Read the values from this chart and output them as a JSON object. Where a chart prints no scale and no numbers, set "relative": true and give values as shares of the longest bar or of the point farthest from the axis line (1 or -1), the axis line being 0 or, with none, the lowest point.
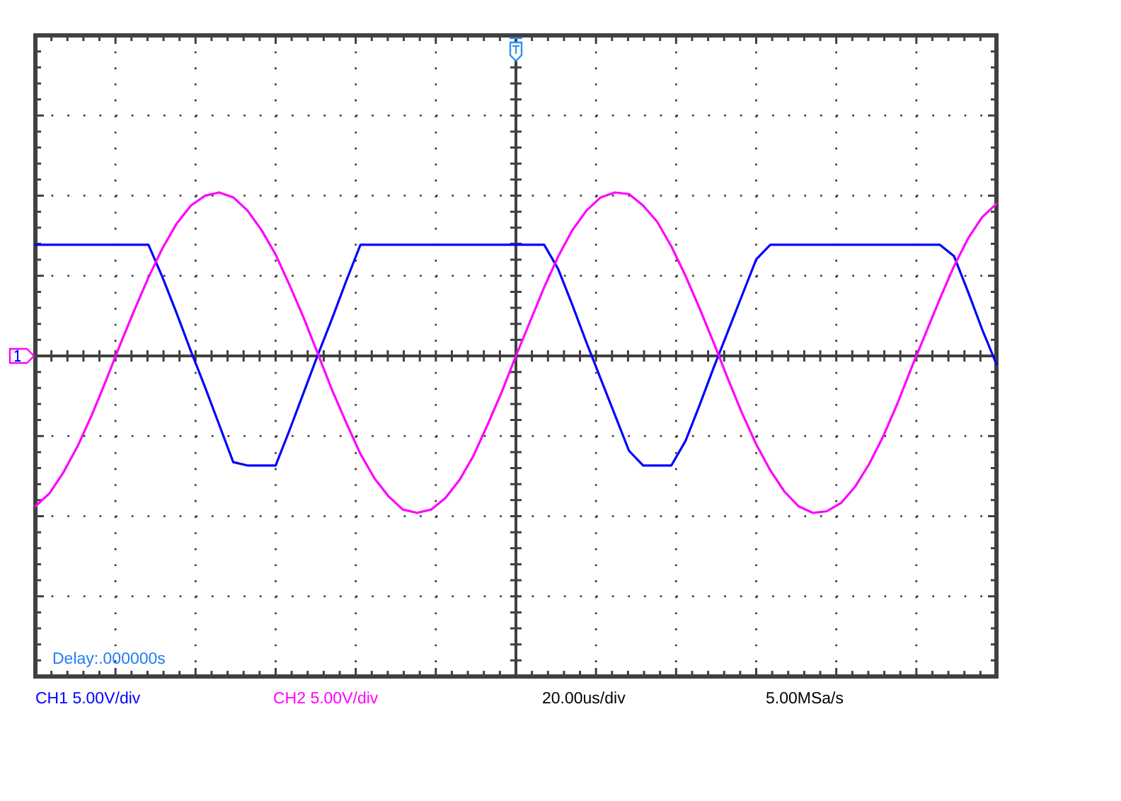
{
  "chart_data": {
    "type": "line",
    "relative": true,
    "categories": [
      null,
      null,
      null,
      null,
      null,
      null,
      null,
      null,
      null,
      null,
      null,
      null,
      null,
      null,
      null,
      null,
      null,
      null,
      null,
      null,
      null,
      null,
      null,
      null,
      null,
      null,
      null,
      null,
      null,
      null,
      null,
      null,
      null,
      null,
      null,
      null,
      null,
      null,
      null,
      null,
      null,
      null,
      null,
      null,
      null,
      null,
      null,
      null,
      null,
      null,
      null,
      null,
      null,
      null,
      null,
      null,
      null,
      null,
      null,
      null,
      null,
      null,
      null,
      null,
      null,
      null,
      null,
      null,
      null
    ],
    "series": [
      {
        "name": "CH1 5.00V/div",
        "color": "#0000ff",
        "values": [
          0.68,
          0.68,
          0.68,
          0.68,
          0.68,
          0.68,
          0.68,
          0.68,
          0.68,
          0.48,
          0.26,
          0.03,
          -0.19,
          -0.42,
          -0.65,
          -0.67,
          -0.67,
          -0.67,
          -0.45,
          -0.22,
          0.01,
          0.23,
          0.46,
          0.68,
          0.68,
          0.68,
          0.68,
          0.68,
          0.68,
          0.68,
          0.68,
          0.68,
          0.68,
          0.68,
          0.68,
          0.68,
          0.68,
          0.53,
          0.31,
          0.08,
          -0.14,
          -0.36,
          -0.58,
          -0.67,
          -0.67,
          -0.67,
          -0.52,
          -0.3,
          -0.07,
          0.15,
          0.37,
          0.59,
          0.68,
          0.68,
          0.68,
          0.68,
          0.68,
          0.68,
          0.68,
          0.68,
          0.68,
          0.68,
          0.68,
          0.68,
          0.68,
          0.61,
          0.39,
          0.16,
          -0.05
        ]
      },
      {
        "name": "CH2 5.00V/div",
        "color": "#ff00ff",
        "values": [
          -0.92,
          -0.84,
          -0.71,
          -0.55,
          -0.36,
          -0.15,
          0.07,
          0.28,
          0.48,
          0.66,
          0.81,
          0.92,
          0.98,
          1.0,
          0.97,
          0.89,
          0.77,
          0.62,
          0.43,
          0.23,
          0.01,
          -0.21,
          -0.41,
          -0.6,
          -0.75,
          -0.86,
          -0.94,
          -0.96,
          -0.94,
          -0.87,
          -0.76,
          -0.61,
          -0.42,
          -0.22,
          0.0,
          0.21,
          0.42,
          0.61,
          0.77,
          0.89,
          0.97,
          1.0,
          0.99,
          0.92,
          0.82,
          0.67,
          0.49,
          0.29,
          0.08,
          -0.14,
          -0.35,
          -0.54,
          -0.7,
          -0.83,
          -0.92,
          -0.96,
          -0.95,
          -0.9,
          -0.8,
          -0.66,
          -0.49,
          -0.29,
          -0.07,
          0.14,
          0.35,
          0.55,
          0.72,
          0.85,
          0.93
        ]
      }
    ],
    "annotations": [
      "Delay:.000000s",
      "20.00us/div",
      "5.00MSa/s"
    ],
    "grid": true,
    "legend": "bottom"
  }
}
